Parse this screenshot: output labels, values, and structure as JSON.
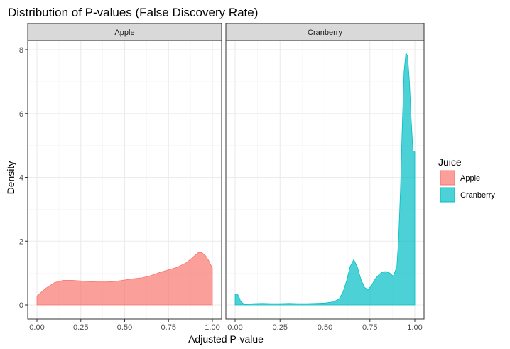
{
  "chart_data": {
    "type": "area",
    "title": "Distribution of P-values (False Discovery Rate)",
    "xlabel": "Adjusted P-value",
    "ylabel": "Density",
    "xlim": [
      0,
      1
    ],
    "ylim": [
      0,
      8
    ],
    "x_ticks": [
      "0.00",
      "0.25",
      "0.50",
      "0.75",
      "1.00"
    ],
    "y_ticks": [
      "0",
      "2",
      "4",
      "6",
      "8"
    ],
    "grid": true,
    "legend": {
      "title": "Juice",
      "position": "right"
    },
    "facets": [
      {
        "strip": "Apple",
        "series_name": "Apple",
        "color": "#F8766D",
        "x": [
          0.0,
          0.05,
          0.1,
          0.15,
          0.2,
          0.25,
          0.3,
          0.35,
          0.4,
          0.45,
          0.5,
          0.55,
          0.6,
          0.65,
          0.7,
          0.75,
          0.8,
          0.85,
          0.88,
          0.9,
          0.92,
          0.94,
          0.96,
          0.98,
          1.0
        ],
        "y": [
          0.28,
          0.52,
          0.7,
          0.77,
          0.77,
          0.75,
          0.73,
          0.72,
          0.72,
          0.74,
          0.78,
          0.82,
          0.85,
          0.92,
          1.02,
          1.1,
          1.18,
          1.32,
          1.45,
          1.55,
          1.64,
          1.64,
          1.55,
          1.38,
          1.15
        ]
      },
      {
        "strip": "Cranberry",
        "series_name": "Cranberry",
        "color": "#00BFC4",
        "x": [
          0.0,
          0.01,
          0.02,
          0.03,
          0.05,
          0.08,
          0.1,
          0.15,
          0.2,
          0.25,
          0.3,
          0.35,
          0.4,
          0.45,
          0.5,
          0.55,
          0.58,
          0.6,
          0.62,
          0.64,
          0.66,
          0.68,
          0.7,
          0.72,
          0.74,
          0.76,
          0.78,
          0.8,
          0.82,
          0.84,
          0.86,
          0.88,
          0.9,
          0.91,
          0.92,
          0.93,
          0.94,
          0.95,
          0.96,
          0.97,
          0.98,
          0.99,
          1.0
        ],
        "y": [
          0.33,
          0.35,
          0.28,
          0.12,
          0.02,
          0.03,
          0.04,
          0.05,
          0.04,
          0.04,
          0.05,
          0.04,
          0.04,
          0.05,
          0.06,
          0.1,
          0.2,
          0.4,
          0.75,
          1.2,
          1.42,
          1.2,
          0.8,
          0.55,
          0.48,
          0.62,
          0.82,
          0.95,
          1.03,
          1.05,
          1.0,
          0.9,
          1.2,
          2.1,
          3.6,
          5.6,
          7.3,
          7.9,
          7.8,
          7.0,
          5.8,
          4.8,
          4.8
        ]
      }
    ]
  }
}
